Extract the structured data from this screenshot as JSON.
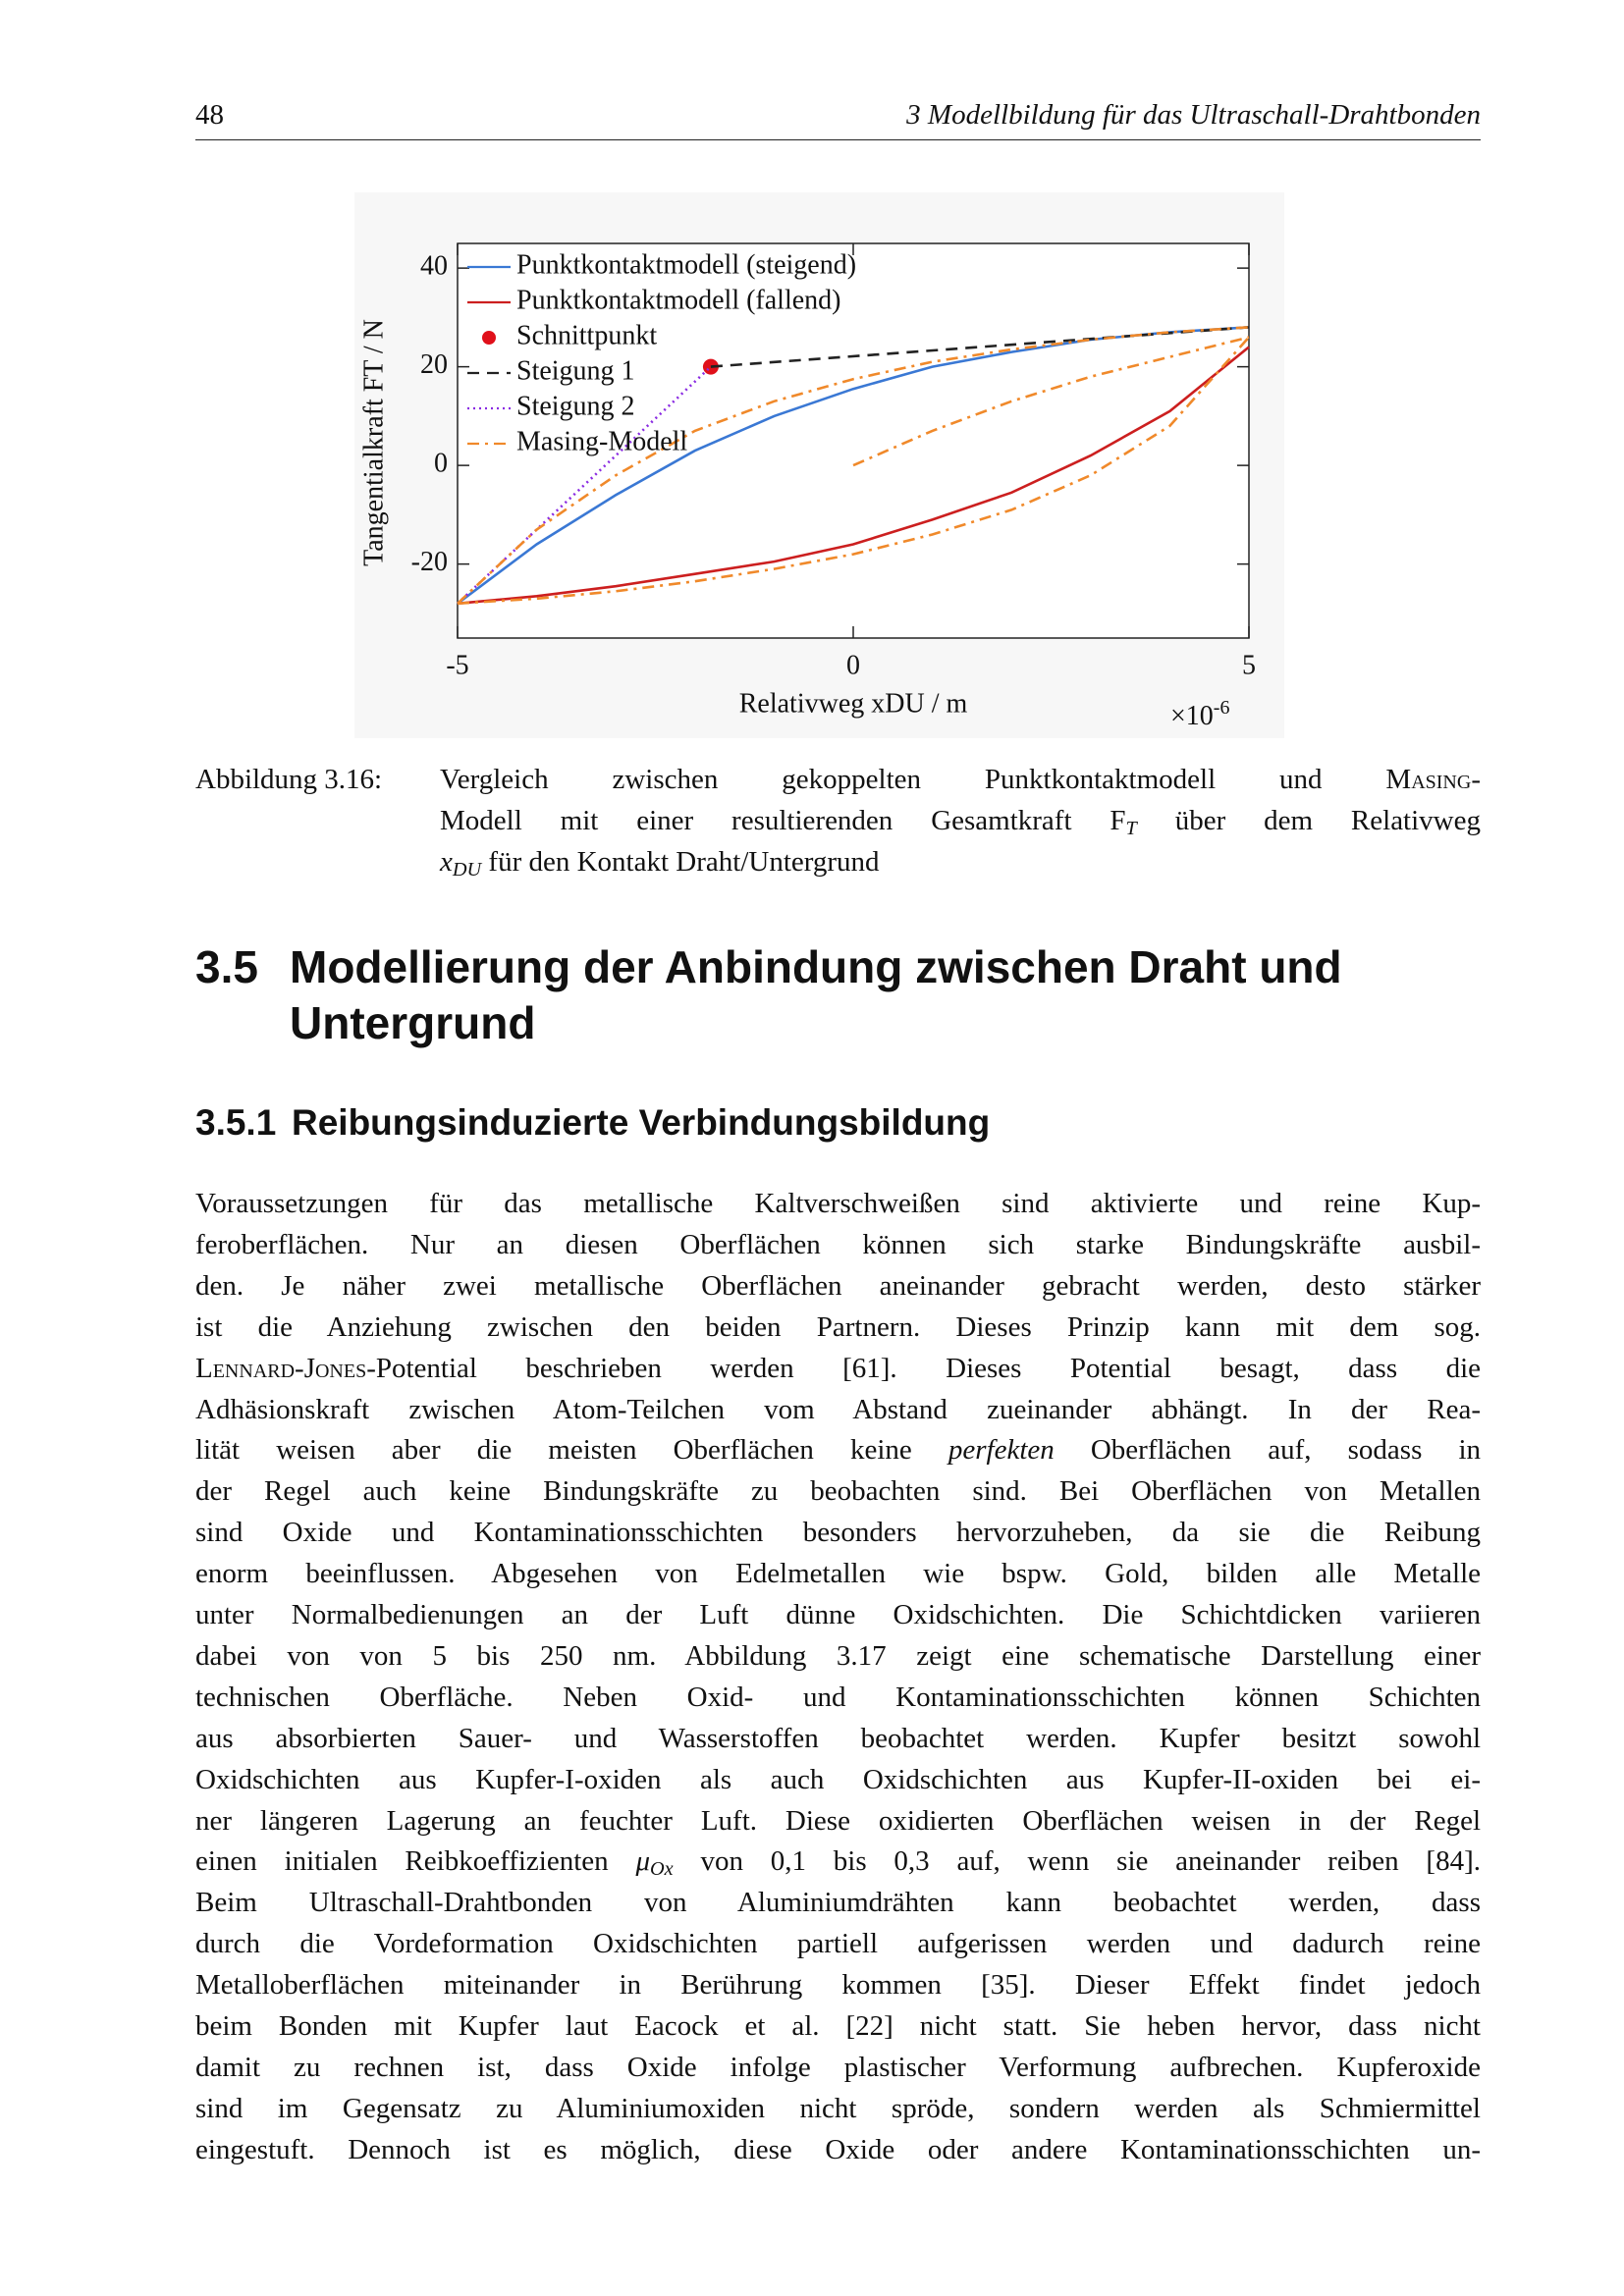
{
  "header": {
    "page_number": "48",
    "running_title": "3 Modellbildung für das Ultraschall-Drahtbonden"
  },
  "chart_data": {
    "type": "line",
    "xlabel": "Relativweg xDU / m",
    "ylabel": "Tangentialkraft FT / N",
    "x_scale_label": {
      "base": "×10",
      "exponent": "-6"
    },
    "xlim": [
      -5,
      5
    ],
    "ylim": [
      -35,
      45
    ],
    "xticks": [
      -5,
      0,
      5
    ],
    "yticks": [
      -20,
      0,
      20,
      40
    ],
    "legend": "upper left",
    "series": [
      {
        "name": "Punktkontaktmodell (steigend)",
        "color": "#3a78d4",
        "style": "solid",
        "x": [
          -5,
          -4,
          -3,
          -2,
          -1,
          0,
          1,
          2,
          3,
          4,
          5
        ],
        "values": [
          -28,
          -16,
          -6,
          3,
          10,
          15.5,
          20,
          23,
          25.5,
          27,
          28
        ]
      },
      {
        "name": "Punktkontaktmodell (fallend)",
        "color": "#cc1f1f",
        "style": "solid",
        "x": [
          -5,
          -4,
          -3,
          -2,
          -1,
          0,
          1,
          2,
          3,
          4,
          5
        ],
        "values": [
          -28,
          -26.5,
          -24.5,
          -22,
          -19.5,
          -16,
          -11,
          -5.5,
          2,
          11,
          24
        ]
      },
      {
        "name": "Schnittpunkt",
        "color": "#e0101a",
        "style": "marker",
        "x": [
          -1.8
        ],
        "values": [
          20
        ]
      },
      {
        "name": "Steigung 1",
        "color": "#222222",
        "style": "dashed",
        "x": [
          -1.8,
          5
        ],
        "values": [
          20,
          28
        ]
      },
      {
        "name": "Steigung 2",
        "color": "#8a2be2",
        "style": "dotted",
        "x": [
          -5,
          -1.8
        ],
        "values": [
          -28,
          20
        ]
      },
      {
        "name": "Masing-Modell",
        "color": "#f0892a",
        "style": "dashdot",
        "x": [
          0,
          1,
          2,
          3,
          4,
          5,
          null,
          -5,
          -4,
          -3,
          -2,
          -1,
          0,
          1,
          2,
          3,
          4,
          5,
          null,
          -5,
          -4,
          -3,
          -2,
          -1,
          0,
          1,
          2,
          3,
          4,
          5
        ],
        "values": [
          0,
          7,
          13,
          18,
          22,
          26,
          null,
          -28,
          -13,
          -2,
          7,
          13,
          17.5,
          21,
          23.5,
          25.5,
          27,
          28,
          null,
          -28,
          -27,
          -25.5,
          -23.5,
          -21,
          -18,
          -14,
          -9,
          -2,
          8,
          26
        ]
      }
    ]
  },
  "caption": {
    "label": "Abbildung 3.16:",
    "lines": [
      [
        {
          "text": "Vergleich zwischen gekoppelten Punktkontaktmodell und "
        },
        {
          "text": "Masing",
          "style": "smallcaps"
        },
        {
          "text": "-"
        }
      ],
      [
        {
          "text": "Modell mit einer resultierenden Gesamtkraft F"
        },
        {
          "text": "T",
          "style": "sub"
        },
        {
          "text": " über dem Relativweg"
        }
      ],
      [
        {
          "text": "x",
          "style": "italic"
        },
        {
          "text": "DU",
          "style": "sub"
        },
        {
          "text": " für den Kontakt Draht/Untergrund"
        }
      ]
    ]
  },
  "section": {
    "number": "3.5",
    "title_lines": [
      "Modellierung der Anbindung zwischen Draht und",
      "Untergrund"
    ]
  },
  "subsection": {
    "number": "3.5.1",
    "title": "Reibungsinduzierte Verbindungsbildung"
  },
  "paragraph": {
    "lines": [
      "Voraussetzungen für das metallische Kaltverschweißen sind aktivierte und reine Kup-",
      "feroberflächen. Nur an diesen Oberflächen können sich starke Bindungskräfte ausbil-",
      "den. Je näher zwei metallische Oberflächen aneinander gebracht werden, desto stärker",
      "ist die Anziehung zwischen den beiden Partnern. Dieses Prinzip kann mit dem sog.",
      [
        {
          "text": "Lennard-Jones",
          "style": "smallcaps"
        },
        {
          "text": "-Potential beschrieben werden [61]. Dieses Potential besagt, dass die"
        }
      ],
      "Adhäsionskraft zwischen Atom-Teilchen vom Abstand zueinander abhängt. In der Rea-",
      [
        {
          "text": "lität weisen aber die meisten Oberflächen keine "
        },
        {
          "text": "perfekten",
          "style": "italic"
        },
        {
          "text": " Oberflächen auf, sodass in"
        }
      ],
      "der Regel auch keine Bindungskräfte zu beobachten sind. Bei Oberflächen von Metallen",
      "sind Oxide und Kontaminationsschichten besonders hervorzuheben, da sie die Reibung",
      "enorm beeinflussen. Abgesehen von Edelmetallen wie bspw. Gold, bilden alle Metalle",
      "unter Normalbedienungen an der Luft dünne Oxidschichten. Die Schichtdicken variieren",
      "dabei von von 5 bis 250 nm. Abbildung 3.17 zeigt eine schematische Darstellung einer",
      "technischen Oberfläche. Neben Oxid- und Kontaminationsschichten können Schichten",
      "aus absorbierten Sauer- und Wasserstoffen beobachtet werden. Kupfer besitzt sowohl",
      "Oxidschichten aus Kupfer-I-oxiden als auch Oxidschichten aus Kupfer-II-oxiden bei ei-",
      "ner längeren Lagerung an feuchter Luft. Diese oxidierten Oberflächen weisen in der Regel",
      [
        {
          "text": "einen initialen Reibkoeffizienten "
        },
        {
          "text": "μ",
          "style": "italic"
        },
        {
          "text": "Ox",
          "style": "sub"
        },
        {
          "text": " von 0,1 bis 0,3 auf, wenn sie aneinander reiben [84]."
        }
      ],
      "Beim Ultraschall-Drahtbonden von Aluminiumdrähten kann beobachtet werden, dass",
      "durch die Vordeformation Oxidschichten partiell aufgerissen werden und dadurch reine",
      "Metalloberflächen miteinander in Berührung kommen [35]. Dieser Effekt findet jedoch",
      "beim Bonden mit Kupfer laut Eacock et al. [22] nicht statt. Sie heben hervor, dass nicht",
      "damit zu rechnen ist, dass Oxide infolge plastischer Verformung aufbrechen. Kupferoxide",
      "sind im Gegensatz zu Aluminiumoxiden nicht spröde, sondern werden als Schmiermittel",
      "eingestuft. Dennoch ist es möglich, diese Oxide oder andere Kontaminationsschichten un-"
    ]
  }
}
